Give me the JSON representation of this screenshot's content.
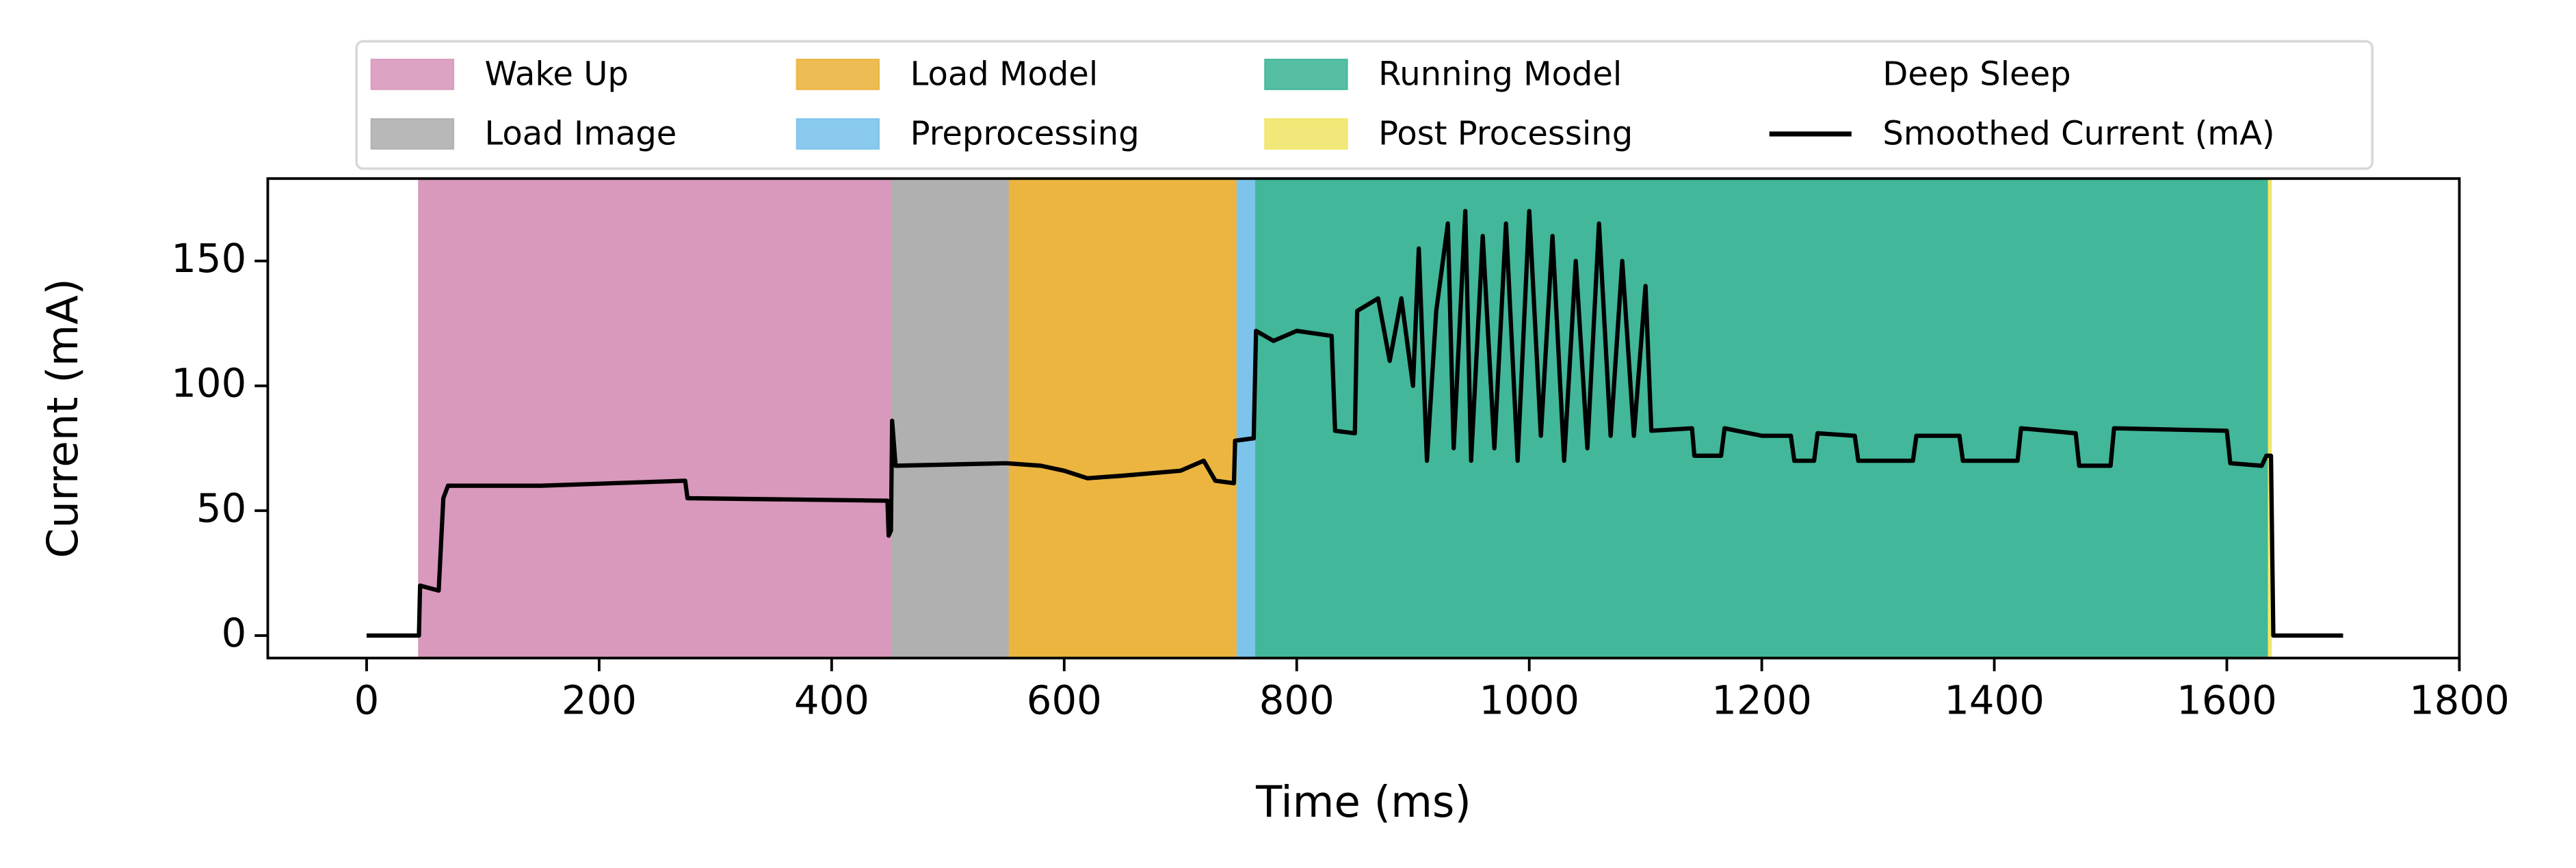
{
  "chart_data": {
    "type": "line",
    "xlabel": "Time (ms)",
    "ylabel": "Current (mA)",
    "xlim": [
      -85,
      1800
    ],
    "ylim": [
      -9,
      183
    ],
    "xticks": [
      0,
      200,
      400,
      600,
      800,
      1000,
      1200,
      1400,
      1600,
      1800
    ],
    "yticks": [
      0,
      50,
      100,
      150
    ],
    "legend": "upper center",
    "spans": [
      {
        "name": "Wake Up",
        "color": "#d899bc",
        "ranges": [
          [
            45,
            452
          ]
        ]
      },
      {
        "name": "Load Image",
        "color": "#b0b0b0",
        "ranges": [
          [
            452,
            553
          ]
        ]
      },
      {
        "name": "Load Model",
        "color": "#ebb540",
        "ranges": [
          [
            553,
            749
          ]
        ]
      },
      {
        "name": "Preprocessing",
        "color": "#7cc4ec",
        "ranges": [
          [
            749,
            765
          ]
        ]
      },
      {
        "name": "Running Model",
        "color": "#42b799",
        "ranges": [
          [
            765,
            1636
          ]
        ]
      },
      {
        "name": "Post Processing",
        "color": "#f0e66a",
        "ranges": [
          [
            1636,
            1638
          ]
        ]
      },
      {
        "name": "Deep Sleep",
        "color": null,
        "ranges": [
          [
            0,
            45
          ],
          [
            1640,
            1700
          ]
        ]
      }
    ],
    "x": [
      0,
      45,
      46,
      62,
      66,
      70,
      150,
      274,
      276,
      448,
      449,
      451,
      452,
      455,
      550,
      580,
      600,
      620,
      650,
      700,
      720,
      730,
      746,
      747,
      763,
      765,
      780,
      800,
      830,
      833,
      850,
      852,
      870,
      880,
      890,
      900,
      905,
      912,
      920,
      930,
      935,
      945,
      950,
      960,
      970,
      980,
      990,
      1000,
      1010,
      1020,
      1030,
      1040,
      1050,
      1060,
      1070,
      1080,
      1090,
      1100,
      1105,
      1140,
      1142,
      1165,
      1168,
      1200,
      1225,
      1228,
      1245,
      1248,
      1280,
      1283,
      1330,
      1333,
      1370,
      1373,
      1420,
      1423,
      1470,
      1473,
      1500,
      1503,
      1600,
      1603,
      1630,
      1634,
      1638,
      1640,
      1700
    ],
    "series": [
      {
        "name": "Smoothed Current (mA)",
        "color": "#000000",
        "values": [
          0,
          0,
          20,
          18,
          55,
          60,
          60,
          62,
          55,
          54,
          40,
          42,
          86,
          68,
          69,
          68,
          66,
          63,
          64,
          66,
          70,
          62,
          61,
          78,
          79,
          122,
          118,
          122,
          120,
          82,
          81,
          130,
          135,
          110,
          135,
          100,
          155,
          70,
          130,
          165,
          75,
          170,
          70,
          160,
          75,
          165,
          70,
          170,
          80,
          160,
          70,
          150,
          75,
          165,
          80,
          150,
          80,
          140,
          82,
          83,
          72,
          72,
          83,
          80,
          80,
          70,
          70,
          81,
          80,
          70,
          70,
          80,
          80,
          70,
          70,
          83,
          81,
          68,
          68,
          83,
          82,
          69,
          68,
          72,
          72,
          0,
          0
        ]
      }
    ]
  }
}
